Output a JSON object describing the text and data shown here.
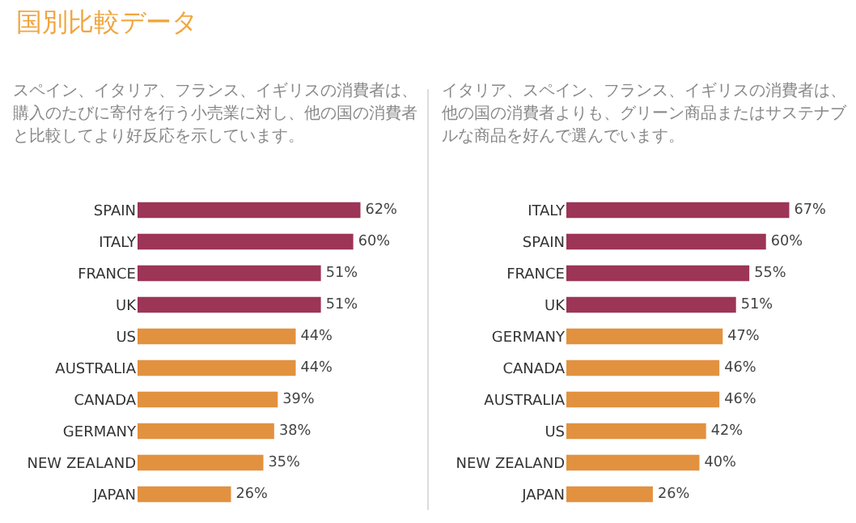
{
  "chart_data": [
    {
      "type": "bar",
      "orientation": "horizontal",
      "title": "国別比較データ",
      "subtitle": "スペイン、イタリア、フランス、イギリスの消費者は、購入のたびに寄付を行う小売業に対し、他の国の消費者と比較してより好反応を示しています。",
      "categories": [
        "SPAIN",
        "ITALY",
        "FRANCE",
        "UK",
        "US",
        "AUSTRALIA",
        "CANADA",
        "GERMANY",
        "NEW ZEALAND",
        "JAPAN"
      ],
      "values": [
        62,
        60,
        51,
        51,
        44,
        44,
        39,
        38,
        35,
        26
      ],
      "value_labels": [
        "62%",
        "60%",
        "51%",
        "51%",
        "44%",
        "44%",
        "39%",
        "38%",
        "35%",
        "26%"
      ],
      "colors": [
        "#9c3556",
        "#9c3556",
        "#9c3556",
        "#9c3556",
        "#e2913f",
        "#e2913f",
        "#e2913f",
        "#e2913f",
        "#e2913f",
        "#e2913f"
      ],
      "tick_labels": "y"
    },
    {
      "type": "bar",
      "orientation": "horizontal",
      "subtitle": "イタリア、スペイン、フランス、イギリスの消費者は、他の国の消費者よりも、グリーン商品またはサステナブルな商品を好んで選んでいます。",
      "categories": [
        "ITALY",
        "SPAIN",
        "FRANCE",
        "UK",
        "GERMANY",
        "CANADA",
        "AUSTRALIA",
        "US",
        "NEW ZEALAND",
        "JAPAN"
      ],
      "values": [
        67,
        60,
        55,
        51,
        47,
        46,
        46,
        42,
        40,
        26
      ],
      "value_labels": [
        "67%",
        "60%",
        "55%",
        "51%",
        "47%",
        "46%",
        "46%",
        "42%",
        "40%",
        "26%"
      ],
      "colors": [
        "#9c3556",
        "#9c3556",
        "#9c3556",
        "#9c3556",
        "#e2913f",
        "#e2913f",
        "#e2913f",
        "#e2913f",
        "#e2913f",
        "#e2913f"
      ],
      "tick_labels": "y"
    }
  ]
}
